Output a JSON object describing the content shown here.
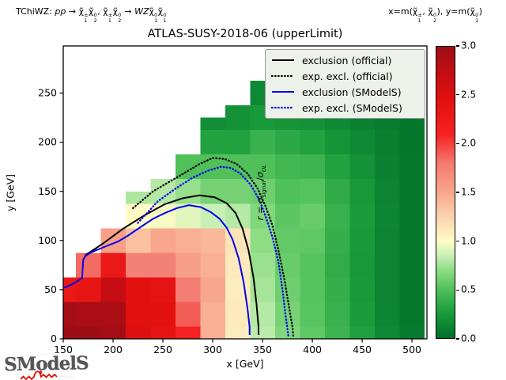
{
  "header": {
    "left_segments": [
      {
        "t": "TChiWZ: "
      },
      {
        "t": "pp",
        "i": 1
      },
      {
        "t": " → "
      },
      {
        "t": "χ̃",
        "sup": "±",
        "sub": "1"
      },
      {
        "t": "χ̃",
        "sup": "0",
        "sub": "2"
      },
      {
        "t": ", "
      },
      {
        "t": "χ̃",
        "sup": "±",
        "sub": "1"
      },
      {
        "t": "χ̃",
        "sup": "0",
        "sub": "2"
      },
      {
        "t": " → "
      },
      {
        "t": "WZ",
        "i": 1
      },
      {
        "t": "χ̃",
        "sup": "0",
        "sub": "1"
      },
      {
        "t": "χ̃",
        "sup": "0",
        "sub": "1"
      }
    ],
    "right_segments": [
      {
        "t": "x=m("
      },
      {
        "t": "χ̃",
        "sup": "±",
        "sub": "1"
      },
      {
        "t": ", "
      },
      {
        "t": "χ̃",
        "sup": "0",
        "sub": "2"
      },
      {
        "t": "), y=m("
      },
      {
        "t": "χ̃",
        "sup": "0",
        "sub": "1"
      },
      {
        "t": ")"
      }
    ]
  },
  "chart_data": {
    "type": "heatmap",
    "title": "ATLAS-SUSY-2018-06 (upperLimit)",
    "xlabel": "x [GeV]",
    "ylabel": "y [GeV]",
    "xlim": [
      150,
      515
    ],
    "ylim": [
      0,
      298
    ],
    "xticks": [
      150,
      200,
      250,
      300,
      350,
      400,
      450,
      500
    ],
    "yticks": [
      0,
      50,
      100,
      150,
      200,
      250
    ],
    "grid_step_gev": 25,
    "z_quantity": "r = sigma_signal / sigma_UL",
    "columns": [
      {
        "x": 150,
        "top": 63,
        "values": [
          3.0,
          2.95,
          2.3
        ]
      },
      {
        "x": 175,
        "top": 88,
        "values": [
          3.0,
          2.9,
          2.35,
          1.85
        ]
      },
      {
        "x": 200,
        "top": 113,
        "values": [
          2.95,
          2.9,
          2.7,
          2.3,
          1.55
        ]
      },
      {
        "x": 225,
        "top": 150,
        "values": [
          2.5,
          2.45,
          2.45,
          1.75,
          1.35,
          1.0,
          0.78
        ]
      },
      {
        "x": 250,
        "top": 163,
        "values": [
          2.4,
          2.45,
          2.4,
          1.75,
          1.5,
          0.98,
          0.8
        ]
      },
      {
        "x": 275,
        "top": 188,
        "values": [
          2.1,
          1.9,
          1.78,
          1.55,
          1.45,
          0.92,
          0.72,
          0.5
        ]
      },
      {
        "x": 300,
        "top": 225,
        "values": [
          1.45,
          1.45,
          1.5,
          1.45,
          1.4,
          0.85,
          0.62,
          0.5,
          0.3,
          0.18
        ]
      },
      {
        "x": 325,
        "top": 240,
        "values": [
          1.1,
          1.12,
          1.1,
          1.12,
          1.15,
          0.8,
          0.62,
          0.5,
          0.3,
          0.2
        ]
      },
      {
        "x": 350,
        "top": 268,
        "values": [
          0.82,
          0.8,
          0.76,
          0.73,
          0.7,
          0.66,
          0.6,
          0.5,
          0.4,
          0.25,
          0.15
        ]
      },
      {
        "x": 375,
        "top": 268,
        "values": [
          0.66,
          0.63,
          0.6,
          0.58,
          0.56,
          0.54,
          0.5,
          0.44,
          0.34,
          0.22,
          0.13
        ]
      },
      {
        "x": 400,
        "top": 298,
        "values": [
          0.55,
          0.53,
          0.52,
          0.52,
          0.55,
          0.58,
          0.52,
          0.42,
          0.3,
          0.2,
          0.13,
          0.1
        ]
      },
      {
        "x": 425,
        "top": 298,
        "values": [
          0.42,
          0.4,
          0.38,
          0.37,
          0.38,
          0.4,
          0.36,
          0.3,
          0.22,
          0.15,
          0.1,
          0.08
        ]
      },
      {
        "x": 450,
        "top": 298,
        "values": [
          0.28,
          0.26,
          0.25,
          0.24,
          0.25,
          0.26,
          0.24,
          0.2,
          0.15,
          0.11,
          0.08,
          0.06
        ]
      },
      {
        "x": 475,
        "top": 298,
        "values": [
          0.15,
          0.13,
          0.12,
          0.12,
          0.12,
          0.13,
          0.12,
          0.11,
          0.09,
          0.07,
          0.06,
          0.05
        ]
      },
      {
        "x": 500,
        "top": 298,
        "values": [
          0.06,
          0.05,
          0.05,
          0.05,
          0.05,
          0.05,
          0.05,
          0.05,
          0.04,
          0.04,
          0.03,
          0.03
        ]
      }
    ],
    "curves": [
      {
        "name": "exclusion (official)",
        "color": "#000000",
        "style": "solid",
        "points": [
          [
            172,
            85
          ],
          [
            190,
            97
          ],
          [
            210,
            112
          ],
          [
            232,
            126
          ],
          [
            252,
            137
          ],
          [
            270,
            143
          ],
          [
            287,
            146
          ],
          [
            302,
            144
          ],
          [
            314,
            138
          ],
          [
            323,
            128
          ],
          [
            330,
            112
          ],
          [
            336,
            90
          ],
          [
            341,
            62
          ],
          [
            344,
            35
          ],
          [
            346,
            12
          ],
          [
            346,
            4
          ]
        ]
      },
      {
        "name": "exp. excl. (official)",
        "color": "#000000",
        "style": "dotted",
        "points": [
          [
            220,
            133
          ],
          [
            240,
            150
          ],
          [
            257,
            160
          ],
          [
            272,
            169
          ],
          [
            287,
            178
          ],
          [
            300,
            184
          ],
          [
            312,
            183
          ],
          [
            324,
            178
          ],
          [
            335,
            168
          ],
          [
            345,
            153
          ],
          [
            353,
            135
          ],
          [
            360,
            115
          ],
          [
            366,
            90
          ],
          [
            372,
            60
          ],
          [
            377,
            30
          ],
          [
            380,
            12
          ],
          [
            381,
            2
          ]
        ]
      },
      {
        "name": "exclusion (SModelS)",
        "color": "#0000ee",
        "style": "solid",
        "points": [
          [
            151,
            52
          ],
          [
            158,
            55
          ],
          [
            165,
            59
          ],
          [
            169,
            62
          ],
          [
            170,
            80
          ],
          [
            172,
            84
          ],
          [
            178,
            88
          ],
          [
            195,
            95
          ],
          [
            205,
            99
          ],
          [
            215,
            105
          ],
          [
            228,
            114
          ],
          [
            240,
            122
          ],
          [
            252,
            128
          ],
          [
            264,
            133
          ],
          [
            276,
            136
          ],
          [
            288,
            134
          ],
          [
            298,
            129
          ],
          [
            307,
            122
          ],
          [
            314,
            113
          ],
          [
            320,
            101
          ],
          [
            326,
            82
          ],
          [
            331,
            58
          ],
          [
            335,
            30
          ],
          [
            337,
            12
          ],
          [
            337,
            4
          ]
        ]
      },
      {
        "name": "exp. excl. (SModelS)",
        "color": "#0000ee",
        "style": "dotted",
        "points": [
          [
            225,
            118
          ],
          [
            245,
            140
          ],
          [
            263,
            153
          ],
          [
            280,
            164
          ],
          [
            295,
            171
          ],
          [
            308,
            175
          ],
          [
            318,
            174
          ],
          [
            328,
            168
          ],
          [
            338,
            157
          ],
          [
            347,
            141
          ],
          [
            354,
            122
          ],
          [
            360,
            103
          ],
          [
            366,
            78
          ],
          [
            370,
            50
          ],
          [
            373,
            25
          ],
          [
            375,
            10
          ],
          [
            376,
            2
          ]
        ]
      }
    ]
  },
  "legend": {
    "items": [
      {
        "label": "exclusion (official)",
        "color": "#000000",
        "style": "solid"
      },
      {
        "label": "exp. excl. (official)",
        "color": "#000000",
        "style": "dotted"
      },
      {
        "label": "exclusion (SModelS)",
        "color": "#0000ee",
        "style": "solid"
      },
      {
        "label": "exp. excl. (SModelS)",
        "color": "#0000ee",
        "style": "dotted"
      }
    ]
  },
  "colorbar": {
    "ticks": [
      "0.0",
      "0.5",
      "1.0",
      "1.5",
      "2.0",
      "2.5",
      "3.0"
    ],
    "vmin": 0,
    "vmax": 3,
    "label_segments": [
      {
        "t": "r",
        "i": 1
      },
      {
        "t": " = "
      },
      {
        "t": "σ",
        "i": 1,
        "sub": "signal"
      },
      {
        "t": "/"
      },
      {
        "t": "σ",
        "i": 1,
        "sub": "UL"
      }
    ],
    "stops": [
      [
        0.0,
        "#00702b"
      ],
      [
        0.25,
        "#189a3a"
      ],
      [
        0.5,
        "#4fc05a"
      ],
      [
        0.7,
        "#8edd85"
      ],
      [
        0.85,
        "#c8efb6"
      ],
      [
        1.0,
        "#fffcc5"
      ],
      [
        1.2,
        "#fbdcb4"
      ],
      [
        1.5,
        "#f8a68c"
      ],
      [
        1.8,
        "#f37a70"
      ],
      [
        2.1,
        "#f42222"
      ],
      [
        2.45,
        "#e31010"
      ],
      [
        2.75,
        "#c00d13"
      ],
      [
        3.0,
        "#9d0d15"
      ]
    ]
  },
  "logo": {
    "text": "SModelS"
  }
}
